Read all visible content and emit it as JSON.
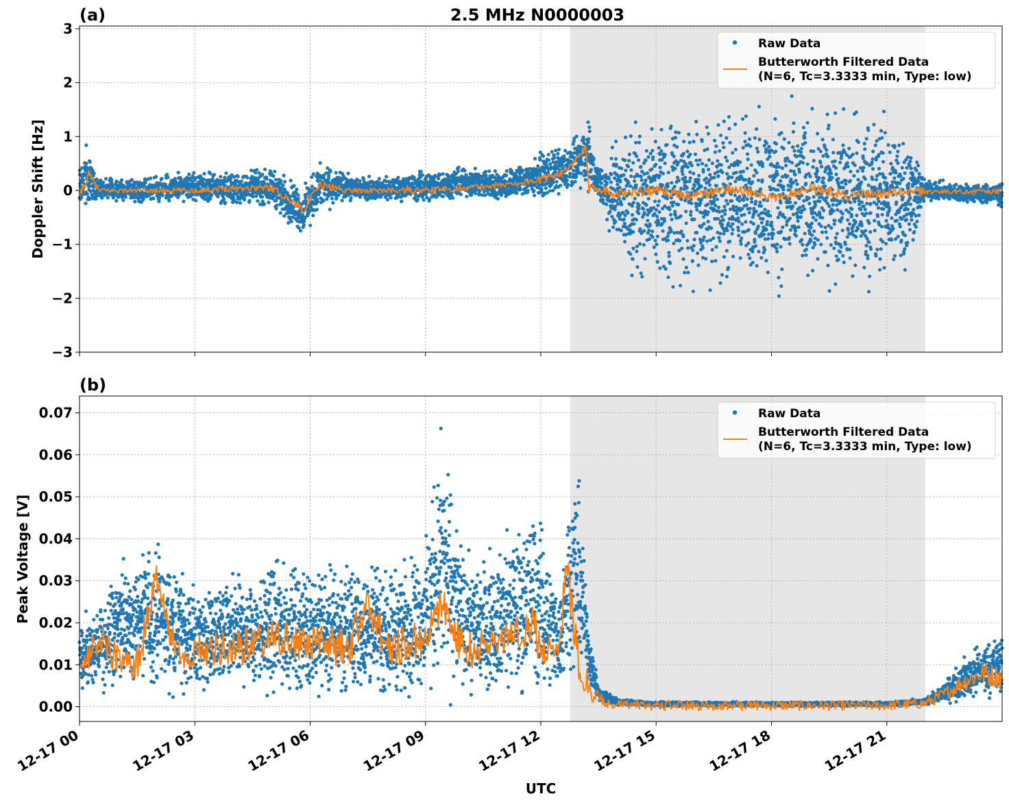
{
  "figure": {
    "title": "2.5 MHz N0000003",
    "xlabel": "UTC",
    "shaded_interval": [
      "12-17 12:46",
      "12-17 22:00"
    ],
    "colors": {
      "raw": "#1f77b4",
      "filtered": "#ff7f0e",
      "shade": "#e6e6e6",
      "grid": "#b0b0b0"
    }
  },
  "legend": {
    "raw_label": "Raw Data",
    "filtered_label_line1": "Butterworth Filtered Data",
    "filtered_label_line2": "(N=6, Tc=3.3333 min, Type: low)"
  },
  "chart_data": [
    {
      "type": "scatter",
      "panel_label": "(a)",
      "title": "2.5 MHz N0000003",
      "xlabel": "",
      "ylabel": "Doppler Shift [Hz]",
      "x_range_hours": [
        0,
        24
      ],
      "ylim": [
        -3,
        3.05
      ],
      "yticks": [
        -3,
        -2,
        -1,
        0,
        1,
        2,
        3
      ],
      "ytick_labels": [
        "−3",
        "−2",
        "−1",
        "0",
        "1",
        "2",
        "3"
      ],
      "grid": true,
      "legend_position": "top-right",
      "series": [
        {
          "name": "Raw Data",
          "style": "scatter",
          "x": [
            "00:00",
            "00:10",
            "00:30",
            "01:00",
            "02:00",
            "03:00",
            "04:00",
            "05:00",
            "05:50",
            "06:15",
            "07:00",
            "08:00",
            "09:00",
            "10:00",
            "11:00",
            "12:00",
            "12:45",
            "13:15",
            "13:25",
            "13:40",
            "14:30",
            "15:30",
            "16:30",
            "17:30",
            "18:30",
            "19:30",
            "20:30",
            "21:30",
            "22:00",
            "23:00",
            "24:00"
          ],
          "y_low": [
            -0.45,
            -0.35,
            -0.15,
            -0.2,
            -0.25,
            -0.2,
            -0.3,
            -0.3,
            -0.9,
            -0.4,
            -0.2,
            -0.2,
            -0.25,
            -0.15,
            -0.2,
            -0.15,
            -0.1,
            0.0,
            -0.05,
            -0.6,
            -1.8,
            -1.9,
            -1.9,
            -1.8,
            -1.9,
            -1.8,
            -1.9,
            -1.7,
            -0.2,
            -0.25,
            -0.3
          ],
          "y_high": [
            0.6,
            0.85,
            0.25,
            0.2,
            0.3,
            0.35,
            0.35,
            0.45,
            0.1,
            0.55,
            0.3,
            0.25,
            0.4,
            0.45,
            0.4,
            0.7,
            0.9,
            1.4,
            0.5,
            0.6,
            1.5,
            1.6,
            1.6,
            1.6,
            1.6,
            1.6,
            1.6,
            1.5,
            0.2,
            0.15,
            0.15
          ]
        },
        {
          "name": "Butterworth Filtered Data",
          "style": "line",
          "x": [
            "00:00",
            "00:15",
            "00:30",
            "01:00",
            "02:00",
            "03:00",
            "04:00",
            "05:00",
            "05:50",
            "06:15",
            "07:00",
            "08:00",
            "09:00",
            "10:00",
            "11:00",
            "12:00",
            "12:45",
            "13:10",
            "13:15",
            "13:25",
            "14:00",
            "15:00",
            "16:00",
            "17:00",
            "18:00",
            "19:00",
            "20:00",
            "21:00",
            "22:00",
            "23:00",
            "24:00"
          ],
          "y": [
            -0.1,
            0.3,
            0.0,
            0.0,
            0.0,
            0.0,
            0.05,
            0.05,
            -0.35,
            0.1,
            0.0,
            0.0,
            0.0,
            0.05,
            0.1,
            0.2,
            0.4,
            0.8,
            0.0,
            0.05,
            -0.05,
            0.0,
            -0.1,
            0.05,
            -0.15,
            0.05,
            -0.1,
            -0.05,
            -0.02,
            -0.02,
            -0.02
          ]
        }
      ]
    },
    {
      "type": "scatter",
      "panel_label": "(b)",
      "xlabel": "UTC",
      "ylabel": "Peak Voltage [V]",
      "x_range_hours": [
        0,
        24
      ],
      "ylim": [
        -0.0035,
        0.074
      ],
      "yticks": [
        0.0,
        0.01,
        0.02,
        0.03,
        0.04,
        0.05,
        0.06,
        0.07
      ],
      "ytick_labels": [
        "0.00",
        "0.01",
        "0.02",
        "0.03",
        "0.04",
        "0.05",
        "0.06",
        "0.07"
      ],
      "xtick_labels": [
        "12-17 00",
        "12-17 03",
        "12-17 06",
        "12-17 09",
        "12-17 12",
        "12-17 15",
        "12-17 18",
        "12-17 21"
      ],
      "grid": true,
      "legend_position": "top-right",
      "series": [
        {
          "name": "Raw Data",
          "style": "scatter",
          "x": [
            "00:00",
            "00:30",
            "01:00",
            "02:00",
            "03:00",
            "04:00",
            "05:00",
            "06:00",
            "07:00",
            "08:00",
            "09:00",
            "09:25",
            "10:00",
            "11:00",
            "11:50",
            "12:30",
            "12:45",
            "13:00",
            "13:15",
            "13:30",
            "14:00",
            "15:00",
            "18:00",
            "21:00",
            "22:00",
            "22:30",
            "23:00",
            "23:30",
            "24:00"
          ],
          "y_low": [
            0.002,
            0.003,
            0.003,
            0.003,
            0.003,
            0.003,
            0.002,
            0.002,
            0.002,
            0.002,
            0.002,
            0.002,
            0.002,
            0.002,
            0.002,
            0.003,
            0.005,
            0.008,
            0.005,
            0.001,
            0.0003,
            0.0001,
            0.0001,
            0.0001,
            0.0003,
            0.001,
            0.001,
            0.002,
            0.002
          ],
          "y_high": [
            0.021,
            0.025,
            0.035,
            0.04,
            0.029,
            0.032,
            0.036,
            0.034,
            0.035,
            0.034,
            0.04,
            0.07,
            0.036,
            0.04,
            0.051,
            0.028,
            0.058,
            0.055,
            0.02,
            0.005,
            0.002,
            0.0012,
            0.0012,
            0.0012,
            0.002,
            0.006,
            0.012,
            0.016,
            0.018
          ]
        },
        {
          "name": "Butterworth Filtered Data",
          "style": "line",
          "x": [
            "00:00",
            "00:30",
            "01:00",
            "01:30",
            "02:00",
            "02:30",
            "03:00",
            "04:00",
            "05:00",
            "06:00",
            "07:00",
            "07:30",
            "08:00",
            "09:00",
            "09:25",
            "10:00",
            "11:00",
            "11:50",
            "12:00",
            "12:30",
            "12:40",
            "12:50",
            "13:00",
            "13:20",
            "13:40",
            "14:00",
            "15:00",
            "18:00",
            "21:00",
            "22:00",
            "22:30",
            "23:00",
            "23:30",
            "24:00"
          ],
          "y": [
            0.009,
            0.016,
            0.012,
            0.01,
            0.03,
            0.012,
            0.013,
            0.014,
            0.016,
            0.015,
            0.014,
            0.025,
            0.014,
            0.016,
            0.025,
            0.013,
            0.016,
            0.02,
            0.012,
            0.016,
            0.036,
            0.02,
            0.01,
            0.003,
            0.001,
            0.0005,
            0.0003,
            0.0003,
            0.0003,
            0.0008,
            0.003,
            0.006,
            0.008,
            0.007
          ]
        }
      ]
    }
  ]
}
